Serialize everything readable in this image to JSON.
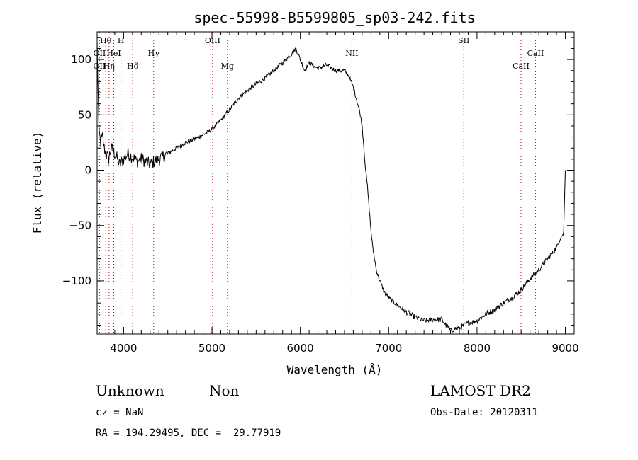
{
  "chart_data": {
    "type": "line",
    "title": "spec-55998-B5599805_sp03-242.fits",
    "xlabel": "Wavelength (Å)",
    "ylabel": "Flux (relative)",
    "xlim": [
      3700,
      9100
    ],
    "ylim": [
      -148,
      125
    ],
    "xticks": [
      4000,
      5000,
      6000,
      7000,
      8000,
      9000
    ],
    "yticks": [
      -100,
      -50,
      0,
      50,
      100
    ],
    "grid": false,
    "series": [
      {
        "x": [
          3700,
          3720,
          3740,
          3760,
          3780,
          3800,
          3830,
          3860,
          3900,
          3930,
          3960,
          4000,
          4050,
          4100,
          4150,
          4200,
          4250,
          4300,
          4350,
          4400,
          4500,
          4600,
          4700,
          4800,
          4900,
          5000,
          5100,
          5200,
          5300,
          5400,
          5500,
          5600,
          5700,
          5800,
          5900,
          5950,
          6000,
          6050,
          6100,
          6200,
          6300,
          6400,
          6500,
          6550,
          6600,
          6650,
          6680,
          6700,
          6720,
          6740,
          6760,
          6780,
          6800,
          6820,
          6840,
          6860,
          6900,
          6950,
          7000,
          7100,
          7200,
          7300,
          7400,
          7500,
          7600,
          7650,
          7700,
          7750,
          7800,
          7900,
          8000,
          8100,
          8200,
          8300,
          8400,
          8500,
          8600,
          8700,
          8800,
          8900,
          8950,
          8980,
          9000
        ],
        "y": [
          115,
          35,
          25,
          30,
          20,
          15,
          10,
          20,
          15,
          10,
          5,
          10,
          15,
          12,
          8,
          10,
          8,
          5,
          8,
          10,
          15,
          20,
          25,
          28,
          32,
          37,
          45,
          55,
          65,
          72,
          78,
          83,
          90,
          97,
          105,
          110,
          100,
          90,
          97,
          92,
          95,
          90,
          90,
          85,
          75,
          60,
          50,
          40,
          20,
          0,
          -15,
          -35,
          -55,
          -70,
          -80,
          -90,
          -100,
          -110,
          -115,
          -122,
          -128,
          -133,
          -136,
          -135,
          -135,
          -140,
          -145,
          -143,
          -143,
          -138,
          -136,
          -130,
          -126,
          -120,
          -115,
          -108,
          -98,
          -90,
          -80,
          -70,
          -60,
          -58,
          0
        ]
      }
    ],
    "line_markers": [
      {
        "label": "Hθ",
        "x": 3798,
        "row": 0
      },
      {
        "label": "H",
        "x": 3970,
        "row": 0
      },
      {
        "label": "OIII",
        "x": 5007,
        "row": 0
      },
      {
        "label": "SII",
        "x": 7850,
        "row": 0
      },
      {
        "label": "OII",
        "x": 3727,
        "row": 1
      },
      {
        "label": "HeI",
        "x": 3889,
        "row": 1
      },
      {
        "label": "Hγ",
        "x": 4340,
        "row": 1
      },
      {
        "label": "NII",
        "x": 6584,
        "row": 1
      },
      {
        "label": "CaII",
        "x": 8662,
        "row": 1
      },
      {
        "label": "OII",
        "x": 3727,
        "row": 2
      },
      {
        "label": "Hη",
        "x": 3835,
        "row": 2
      },
      {
        "label": "Hδ",
        "x": 4102,
        "row": 2
      },
      {
        "label": "Mg",
        "x": 5175,
        "row": 2
      },
      {
        "label": "CaII",
        "x": 8498,
        "row": 2
      }
    ],
    "marker_color": "#cc0000"
  },
  "info": {
    "class": "Unknown",
    "subclass": "Non",
    "survey": "LAMOST DR2",
    "cz": "cz = NaN",
    "obs_date": "Obs-Date: 20120311",
    "coords": "RA = 194.29495, DEC =  29.77919"
  }
}
